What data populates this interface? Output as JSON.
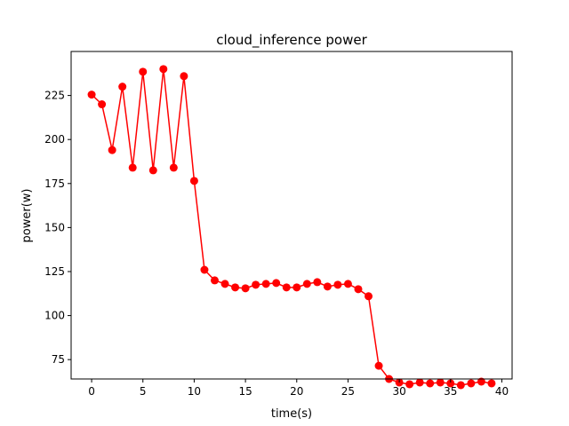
{
  "chart_data": {
    "type": "line",
    "title": "cloud_inference power",
    "xlabel": "time(s)",
    "ylabel": "power(w)",
    "xlim": [
      -2,
      41
    ],
    "ylim": [
      64,
      250
    ],
    "xticks": [
      0,
      5,
      10,
      15,
      20,
      25,
      30,
      35,
      40
    ],
    "yticks": [
      75,
      100,
      125,
      150,
      175,
      200,
      225
    ],
    "grid": false,
    "series": [
      {
        "color": "#ff0000",
        "marker": "circle",
        "x": [
          0,
          1,
          2,
          3,
          4,
          5,
          6,
          7,
          8,
          9,
          10,
          11,
          12,
          13,
          14,
          15,
          16,
          17,
          18,
          19,
          20,
          21,
          22,
          23,
          24,
          25,
          26,
          27,
          28,
          29,
          30,
          31,
          32,
          33,
          34,
          35,
          36,
          37,
          38,
          39
        ],
        "y": [
          225.5,
          220,
          194,
          230,
          184,
          238.5,
          182.5,
          240,
          184,
          236,
          176.5,
          126,
          120,
          118,
          116,
          115.5,
          117.5,
          118,
          118.5,
          116,
          116,
          118,
          119,
          116.5,
          117.5,
          118,
          115,
          111,
          71.5,
          64,
          62,
          61,
          62,
          61.5,
          62,
          61.5,
          60.5,
          61.5,
          62.5,
          61.5
        ]
      }
    ]
  }
}
